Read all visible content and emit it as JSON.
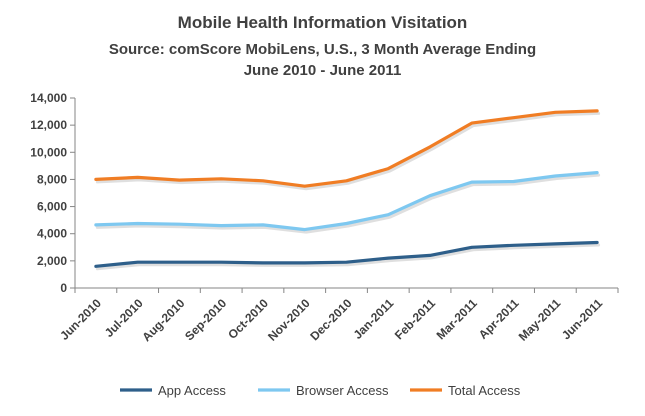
{
  "chart_data": {
    "type": "line",
    "title": "Mobile Health Information Visitation",
    "subtitle": "Source: comScore MobiLens, U.S., 3 Month Average Ending June 2010 - June 2011",
    "categories": [
      "Jun-2010",
      "Jul-2010",
      "Aug-2010",
      "Sep-2010",
      "Oct-2010",
      "Nov-2010",
      "Dec-2010",
      "Jan-2011",
      "Feb-2011",
      "Mar-2011",
      "Apr-2011",
      "May-2011",
      "Jun-2011"
    ],
    "yticks": [
      "0",
      "2,000",
      "4,000",
      "6,000",
      "8,000",
      "10,000",
      "12,000",
      "14,000"
    ],
    "ylim": [
      0,
      14000
    ],
    "grid": false,
    "legend_position": "bottom",
    "series": [
      {
        "name": "App Access",
        "color": "#2e5f8a",
        "values": [
          1600,
          1900,
          1900,
          1900,
          1850,
          1850,
          1900,
          2200,
          2400,
          3000,
          3150,
          3250,
          3350
        ]
      },
      {
        "name": "Browser Access",
        "color": "#7ec8f0",
        "values": [
          4650,
          4750,
          4700,
          4600,
          4650,
          4300,
          4750,
          5400,
          6800,
          7800,
          7850,
          8250,
          8500
        ]
      },
      {
        "name": "Total Access",
        "color": "#f07d24",
        "values": [
          8000,
          8150,
          7950,
          8050,
          7900,
          7500,
          7900,
          8800,
          10400,
          12150,
          12550,
          12950,
          13050
        ]
      }
    ]
  }
}
